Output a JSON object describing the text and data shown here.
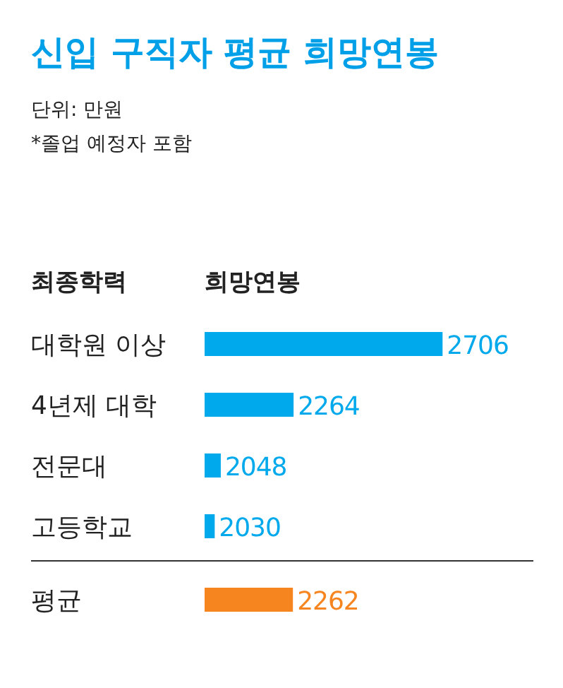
{
  "chart_data": {
    "type": "bar",
    "orientation": "horizontal",
    "title": "신입 구직자 평균 희망연봉",
    "annotations": [
      "단위: 만원",
      "*졸업 예정자 포함"
    ],
    "ylabel": "최종학력",
    "xlabel": "희망연봉",
    "categories": [
      "대학원 이상",
      "4년제 대학",
      "전문대",
      "고등학교",
      "평균"
    ],
    "values": [
      2706,
      2264,
      2048,
      2030,
      2262
    ],
    "colors": [
      "#00a9ec",
      "#00a9ec",
      "#00a9ec",
      "#00a9ec",
      "#f7851f"
    ],
    "xlim": [
      2000,
      2710
    ],
    "data_labels": true
  }
}
